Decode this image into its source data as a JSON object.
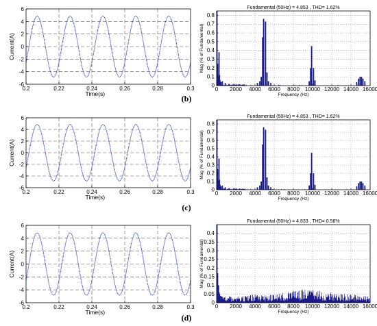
{
  "colors": {
    "wave": "#3a4fd0",
    "spectrum": "#1a1a8c",
    "grid": "#555555"
  },
  "chart_data": [
    {
      "type": "line",
      "panel": "b",
      "xlabel": "Time(s)",
      "ylabel": "Current(A)",
      "xlim": [
        0.2,
        0.3
      ],
      "ylim": [
        -6,
        6
      ],
      "x_ticks": [
        "0.2",
        "0.22",
        "0.24",
        "0.26",
        "0.28",
        "0.3"
      ],
      "y_ticks": [
        "-6",
        "-4",
        "-2",
        "0",
        "2",
        "4",
        "6"
      ],
      "amplitude": 4.853,
      "frequency_hz": 50,
      "grid": true
    },
    {
      "type": "bar",
      "panel": "b",
      "title": "Fundamental (50Hz) = 4.853 , THD= 1.62%",
      "xlabel": "Frequency (Hz)",
      "ylabel": "Mag (% of Fundamental)",
      "xlim": [
        0,
        16000
      ],
      "ylim": [
        0,
        0.85
      ],
      "x_ticks": [
        "0",
        "2000",
        "4000",
        "6000",
        "8000",
        "10000",
        "12000",
        "14000",
        "16000"
      ],
      "y_ticks": [
        "0",
        "0.1",
        "0.2",
        "0.3",
        "0.4",
        "0.5",
        "0.6",
        "0.7",
        "0.8"
      ],
      "grid": true,
      "harmonics": [
        {
          "f": 100,
          "v": 0.25
        },
        {
          "f": 150,
          "v": 0.12
        },
        {
          "f": 250,
          "v": 0.38
        },
        {
          "f": 300,
          "v": 0.12
        },
        {
          "f": 350,
          "v": 0.06
        },
        {
          "f": 450,
          "v": 0.04
        },
        {
          "f": 600,
          "v": 0.05
        },
        {
          "f": 900,
          "v": 0.03
        },
        {
          "f": 1300,
          "v": 0.02
        },
        {
          "f": 1800,
          "v": 0.02
        },
        {
          "f": 2400,
          "v": 0.015
        },
        {
          "f": 4250,
          "v": 0.03
        },
        {
          "f": 4500,
          "v": 0.05
        },
        {
          "f": 4650,
          "v": 0.1
        },
        {
          "f": 4800,
          "v": 0.55
        },
        {
          "f": 4900,
          "v": 0.76
        },
        {
          "f": 5100,
          "v": 0.73
        },
        {
          "f": 5250,
          "v": 0.15
        },
        {
          "f": 5400,
          "v": 0.05
        },
        {
          "f": 5650,
          "v": 0.03
        },
        {
          "f": 9650,
          "v": 0.05
        },
        {
          "f": 9800,
          "v": 0.2
        },
        {
          "f": 9900,
          "v": 0.45
        },
        {
          "f": 10100,
          "v": 0.2
        },
        {
          "f": 10250,
          "v": 0.06
        },
        {
          "f": 14600,
          "v": 0.04
        },
        {
          "f": 14800,
          "v": 0.08
        },
        {
          "f": 14950,
          "v": 0.1
        },
        {
          "f": 15100,
          "v": 0.1
        },
        {
          "f": 15250,
          "v": 0.08
        },
        {
          "f": 15450,
          "v": 0.05
        }
      ]
    },
    {
      "type": "line",
      "panel": "c",
      "xlabel": "Time(s)",
      "ylabel": "Current(A)",
      "xlim": [
        0.2,
        0.3
      ],
      "ylim": [
        -6,
        6
      ],
      "x_ticks": [
        "0.2",
        "0.22",
        "0.24",
        "0.26",
        "0.28",
        "0.3"
      ],
      "y_ticks": [
        "-6",
        "-4",
        "-2",
        "0",
        "2",
        "4",
        "6"
      ],
      "amplitude": 4.853,
      "frequency_hz": 50,
      "grid": true
    },
    {
      "type": "bar",
      "panel": "c",
      "title": "Fundamental (50Hz) = 4.853 , THD= 1.62%",
      "xlabel": "Frequency (Hz)",
      "ylabel": "Mag (% of Fundamental)",
      "xlim": [
        0,
        16000
      ],
      "ylim": [
        0,
        0.85
      ],
      "x_ticks": [
        "0",
        "2000",
        "4000",
        "6000",
        "8000",
        "10000",
        "12000",
        "14000",
        "16000"
      ],
      "y_ticks": [
        "0",
        "0.1",
        "0.2",
        "0.3",
        "0.4",
        "0.5",
        "0.6",
        "0.7",
        "0.8"
      ],
      "grid": true,
      "harmonics": [
        {
          "f": 100,
          "v": 0.25
        },
        {
          "f": 150,
          "v": 0.12
        },
        {
          "f": 250,
          "v": 0.38
        },
        {
          "f": 300,
          "v": 0.12
        },
        {
          "f": 350,
          "v": 0.06
        },
        {
          "f": 450,
          "v": 0.04
        },
        {
          "f": 600,
          "v": 0.05
        },
        {
          "f": 900,
          "v": 0.03
        },
        {
          "f": 1300,
          "v": 0.02
        },
        {
          "f": 1800,
          "v": 0.02
        },
        {
          "f": 2400,
          "v": 0.015
        },
        {
          "f": 4250,
          "v": 0.03
        },
        {
          "f": 4500,
          "v": 0.05
        },
        {
          "f": 4650,
          "v": 0.1
        },
        {
          "f": 4800,
          "v": 0.55
        },
        {
          "f": 4900,
          "v": 0.76
        },
        {
          "f": 5100,
          "v": 0.73
        },
        {
          "f": 5250,
          "v": 0.15
        },
        {
          "f": 5400,
          "v": 0.05
        },
        {
          "f": 5650,
          "v": 0.03
        },
        {
          "f": 9650,
          "v": 0.05
        },
        {
          "f": 9800,
          "v": 0.2
        },
        {
          "f": 9900,
          "v": 0.45
        },
        {
          "f": 10100,
          "v": 0.2
        },
        {
          "f": 10250,
          "v": 0.06
        },
        {
          "f": 14600,
          "v": 0.04
        },
        {
          "f": 14800,
          "v": 0.08
        },
        {
          "f": 14950,
          "v": 0.1
        },
        {
          "f": 15100,
          "v": 0.1
        },
        {
          "f": 15250,
          "v": 0.08
        },
        {
          "f": 15450,
          "v": 0.05
        }
      ]
    },
    {
      "type": "line",
      "panel": "d",
      "xlabel": "Time(s)",
      "ylabel": "Current(A)",
      "xlim": [
        0.2,
        0.3
      ],
      "ylim": [
        -6,
        6
      ],
      "x_ticks": [
        "0.2",
        "0.22",
        "0.24",
        "0.26",
        "0.28",
        "0.3"
      ],
      "y_ticks": [
        "-6",
        "-4",
        "-2",
        "0",
        "2",
        "4",
        "6"
      ],
      "amplitude": 4.833,
      "frequency_hz": 50,
      "grid": true
    },
    {
      "type": "bar",
      "panel": "d",
      "title": "Fundamental (50Hz) = 4.833 , THD= 0.56%",
      "xlabel": "Frequency (Hz)",
      "ylabel": "Mag (% of Fundamental)",
      "xlim": [
        0,
        16000
      ],
      "ylim": [
        0,
        0.45
      ],
      "x_ticks": [
        "0",
        "2000",
        "4000",
        "6000",
        "8000",
        "10000",
        "12000",
        "14000",
        "16000"
      ],
      "y_ticks": [
        "0",
        "0.05",
        "0.1",
        "0.15",
        "0.2",
        "0.25",
        "0.3",
        "0.35",
        "0.4"
      ],
      "grid": true,
      "harmonics": [
        {
          "f": 100,
          "v": 0.17
        },
        {
          "f": 150,
          "v": 0.08
        },
        {
          "f": 200,
          "v": 0.1
        },
        {
          "f": 250,
          "v": 0.06
        },
        {
          "f": 300,
          "v": 0.05
        },
        {
          "f": 400,
          "v": 0.04
        },
        {
          "f": 550,
          "v": 0.035
        },
        {
          "f": 800,
          "v": 0.03
        }
      ],
      "noise_floor": [
        [
          0,
          0.03
        ],
        [
          2000,
          0.025
        ],
        [
          3000,
          0.03
        ],
        [
          4000,
          0.035
        ],
        [
          5000,
          0.03
        ],
        [
          6000,
          0.035
        ],
        [
          7000,
          0.045
        ],
        [
          8000,
          0.05
        ],
        [
          9500,
          0.055
        ],
        [
          11000,
          0.05
        ],
        [
          12500,
          0.04
        ],
        [
          14000,
          0.035
        ],
        [
          16000,
          0.03
        ]
      ]
    }
  ]
}
